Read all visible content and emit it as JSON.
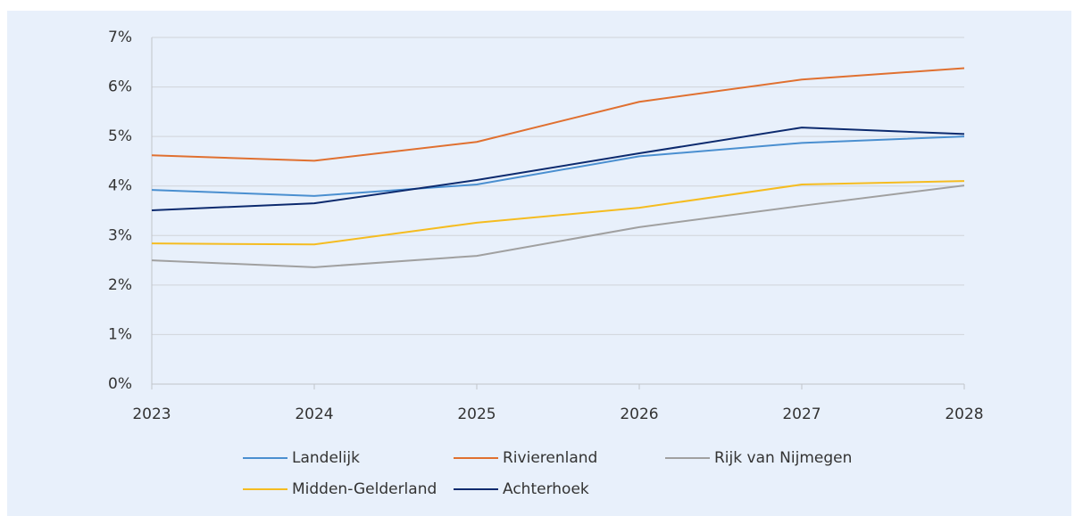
{
  "chart_data": {
    "type": "line",
    "x": [
      2023,
      2024,
      2025,
      2026,
      2027,
      2028
    ],
    "xlim": [
      2023,
      2028
    ],
    "xticks": [
      2023,
      2024,
      2025,
      2026,
      2027,
      2028
    ],
    "ylim": [
      0,
      7
    ],
    "yticks": [
      {
        "value": 0,
        "label": "0%"
      },
      {
        "value": 1,
        "label": "1%"
      },
      {
        "value": 2,
        "label": "2%"
      },
      {
        "value": 3,
        "label": "3%"
      },
      {
        "value": 4,
        "label": "4%"
      },
      {
        "value": 5,
        "label": "5%"
      },
      {
        "value": 6,
        "label": "6%"
      },
      {
        "value": 7,
        "label": "7%"
      }
    ],
    "grid": true,
    "legend": "bottom",
    "series": [
      {
        "name": "Landelijk",
        "color": "#4a8fd0",
        "values": [
          3.92,
          3.8,
          4.03,
          4.6,
          4.87,
          5.0
        ]
      },
      {
        "name": "Rivierenland",
        "color": "#e07030",
        "values": [
          4.62,
          4.51,
          4.89,
          5.7,
          6.15,
          6.38
        ]
      },
      {
        "name": "Rijk van Nijmegen",
        "color": "#a0a0a0",
        "values": [
          2.5,
          2.36,
          2.59,
          3.17,
          3.6,
          4.01
        ]
      },
      {
        "name": "Midden-Gelderland",
        "color": "#f5bc20",
        "values": [
          2.84,
          2.82,
          3.26,
          3.56,
          4.03,
          4.1
        ]
      },
      {
        "name": "Achterhoek",
        "color": "#0c2a6e",
        "values": [
          3.51,
          3.65,
          4.12,
          4.66,
          5.18,
          5.05
        ]
      }
    ]
  }
}
